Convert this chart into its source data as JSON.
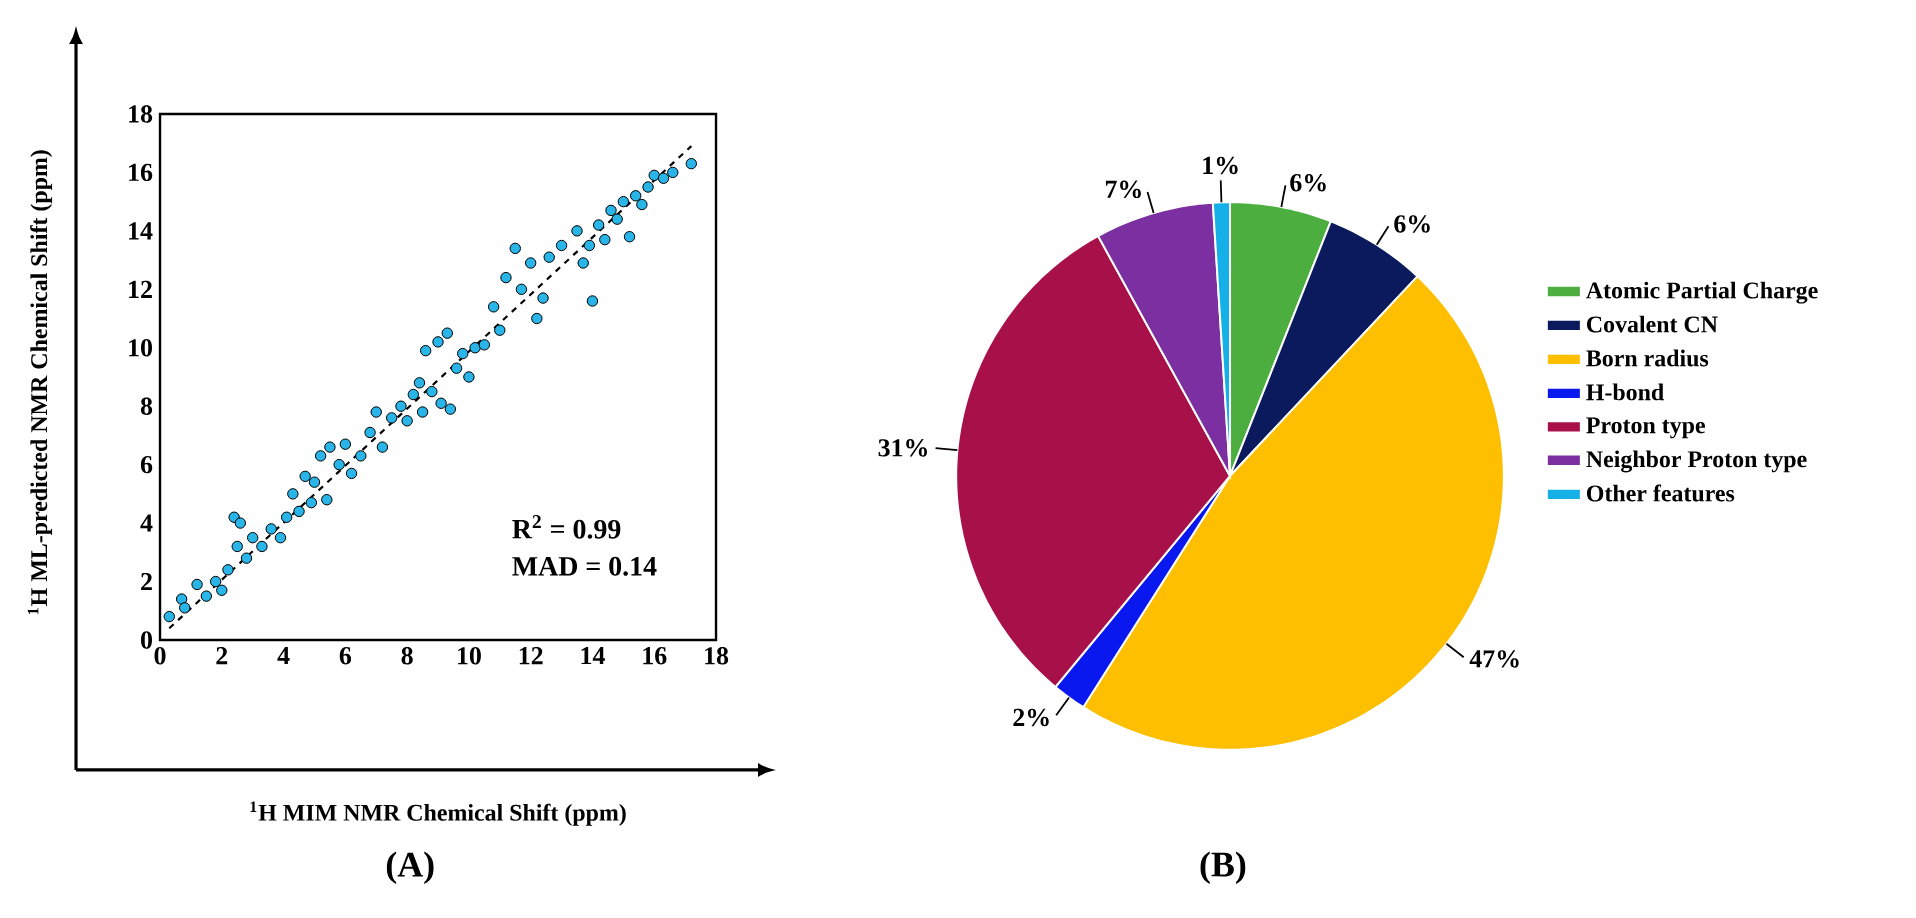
{
  "chart_data": [
    {
      "type": "scatter",
      "title": "(A)",
      "xlabel": "$^{1}$H MIM NMR Chemical Shift (ppm)",
      "ylabel": "$^{1}$H ML-predicted NMR Chemical Shift (ppm)",
      "xlim": [
        0,
        18
      ],
      "ylim": [
        0,
        18
      ],
      "xticks": [
        0,
        2,
        4,
        6,
        8,
        10,
        12,
        14,
        16,
        18
      ],
      "yticks": [
        0,
        2,
        4,
        6,
        8,
        10,
        12,
        14,
        16,
        18
      ],
      "grid": false,
      "legend": false,
      "annotations": [
        "R$^{2}$ = 0.99",
        "MAD = 0.14"
      ],
      "series": [
        {
          "type": "scatter",
          "color": "#29b5e8",
          "marker": "circle",
          "x": [
            0.3,
            0.7,
            0.8,
            1.2,
            1.5,
            1.8,
            2.0,
            2.2,
            2.4,
            2.6,
            2.5,
            2.8,
            3.0,
            3.3,
            3.6,
            3.9,
            4.1,
            4.3,
            4.5,
            4.7,
            4.9,
            5.0,
            5.2,
            5.4,
            5.5,
            5.8,
            6.0,
            6.2,
            6.5,
            6.8,
            7.0,
            7.2,
            7.5,
            7.8,
            8.0,
            8.2,
            8.4,
            8.5,
            8.6,
            8.8,
            9.0,
            9.1,
            9.3,
            9.4,
            9.6,
            9.8,
            10.0,
            10.2,
            10.5,
            10.8,
            11.0,
            11.2,
            11.5,
            11.7,
            12.0,
            12.2,
            12.4,
            12.6,
            13.0,
            13.5,
            13.7,
            13.9,
            14.0,
            14.2,
            14.4,
            14.6,
            14.8,
            15.0,
            15.2,
            15.4,
            15.6,
            15.8,
            16.0,
            16.3,
            16.6,
            17.2
          ],
          "values": [
            0.8,
            1.4,
            1.1,
            1.9,
            1.5,
            2.0,
            1.7,
            2.4,
            4.2,
            4.0,
            3.2,
            2.8,
            3.5,
            3.2,
            3.8,
            3.5,
            4.2,
            5.0,
            4.4,
            5.6,
            4.7,
            5.4,
            6.3,
            4.8,
            6.6,
            6.0,
            6.7,
            5.7,
            6.3,
            7.1,
            7.8,
            6.6,
            7.6,
            8.0,
            7.5,
            8.4,
            8.8,
            7.8,
            9.9,
            8.5,
            10.2,
            8.1,
            10.5,
            7.9,
            9.3,
            9.8,
            9.0,
            10.0,
            10.1,
            11.4,
            10.6,
            12.4,
            13.4,
            12.0,
            12.9,
            11.0,
            11.7,
            13.1,
            13.5,
            14.0,
            12.9,
            13.5,
            11.6,
            14.2,
            13.7,
            14.7,
            14.4,
            15.0,
            13.8,
            15.2,
            14.9,
            15.5,
            15.9,
            15.8,
            16.0,
            16.3
          ]
        },
        {
          "type": "line",
          "color": "#000000",
          "marker": "none",
          "line_style": "dashed",
          "x": [
            0.3,
            17.2
          ],
          "values": [
            0.4,
            16.9
          ]
        }
      ]
    },
    {
      "type": "pie",
      "title": "(B)",
      "legend": "right",
      "categories": [
        "Atomic Partial Charge",
        "Covalent CN",
        "Born radius",
        "H-bond",
        "Proton type",
        "Neighbor Proton type",
        "Other features"
      ],
      "values": [
        6,
        6,
        47,
        2,
        31,
        7,
        1
      ],
      "colors": [
        "#4cae3f",
        "#0a1a5c",
        "#fdbf00",
        "#0a18f0",
        "#a8104a",
        "#7b2fa0",
        "#16b0e8"
      ],
      "value_labels": [
        "6%",
        "6%",
        "47%",
        "2%",
        "31%",
        "7%",
        "1%"
      ]
    }
  ]
}
